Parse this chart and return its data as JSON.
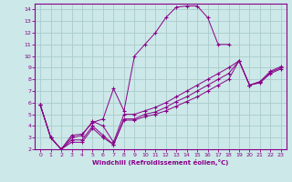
{
  "background_color": "#cce8e8",
  "grid_color": "#aacccc",
  "line_color": "#880088",
  "xlabel": "Windchill (Refroidissement éolien,°C)",
  "xlim": [
    -0.5,
    23.5
  ],
  "ylim": [
    2,
    14.5
  ],
  "xticks": [
    0,
    1,
    2,
    3,
    4,
    5,
    6,
    7,
    8,
    9,
    10,
    11,
    12,
    13,
    14,
    15,
    16,
    17,
    18,
    19,
    20,
    21,
    22,
    23
  ],
  "yticks": [
    2,
    3,
    4,
    5,
    6,
    7,
    8,
    9,
    10,
    11,
    12,
    13,
    14
  ],
  "lines": [
    {
      "x": [
        0,
        1,
        2,
        3,
        4,
        5,
        6,
        7,
        8,
        9,
        10,
        11,
        12,
        13,
        14,
        15,
        16,
        17,
        18
      ],
      "y": [
        5.8,
        3.0,
        2.0,
        3.2,
        3.3,
        4.3,
        4.6,
        7.2,
        5.3,
        10.0,
        11.0,
        12.0,
        13.3,
        14.2,
        14.3,
        14.3,
        13.3,
        11.0,
        11.0
      ]
    },
    {
      "x": [
        0,
        1,
        2,
        3,
        4,
        5,
        6,
        7,
        8,
        9,
        10,
        11,
        12,
        13,
        14,
        15,
        16,
        17,
        18,
        19,
        20,
        21,
        22,
        23
      ],
      "y": [
        5.8,
        3.0,
        2.0,
        2.6,
        2.6,
        3.8,
        3.0,
        2.4,
        4.5,
        4.5,
        4.8,
        5.0,
        5.3,
        5.7,
        6.1,
        6.5,
        7.0,
        7.5,
        8.0,
        9.6,
        7.5,
        7.7,
        8.5,
        8.9
      ]
    },
    {
      "x": [
        0,
        1,
        2,
        3,
        4,
        5,
        6,
        7,
        8,
        9,
        10,
        11,
        12,
        13,
        14,
        15,
        16,
        17,
        18,
        19,
        20,
        21,
        22,
        23
      ],
      "y": [
        5.8,
        3.0,
        2.0,
        2.8,
        2.8,
        4.0,
        3.2,
        2.4,
        4.6,
        4.6,
        5.0,
        5.2,
        5.6,
        6.1,
        6.5,
        7.0,
        7.5,
        8.0,
        8.5,
        9.6,
        7.5,
        7.8,
        8.6,
        9.0
      ]
    },
    {
      "x": [
        0,
        1,
        2,
        3,
        4,
        5,
        6,
        7,
        8,
        9,
        10,
        11,
        12,
        13,
        14,
        15,
        16,
        17,
        18,
        19,
        20,
        21,
        22,
        23
      ],
      "y": [
        5.8,
        3.0,
        2.0,
        3.0,
        3.2,
        4.4,
        4.0,
        2.6,
        5.0,
        5.0,
        5.3,
        5.6,
        6.0,
        6.5,
        7.0,
        7.5,
        8.0,
        8.5,
        9.0,
        9.6,
        7.5,
        7.8,
        8.7,
        9.1
      ]
    }
  ]
}
